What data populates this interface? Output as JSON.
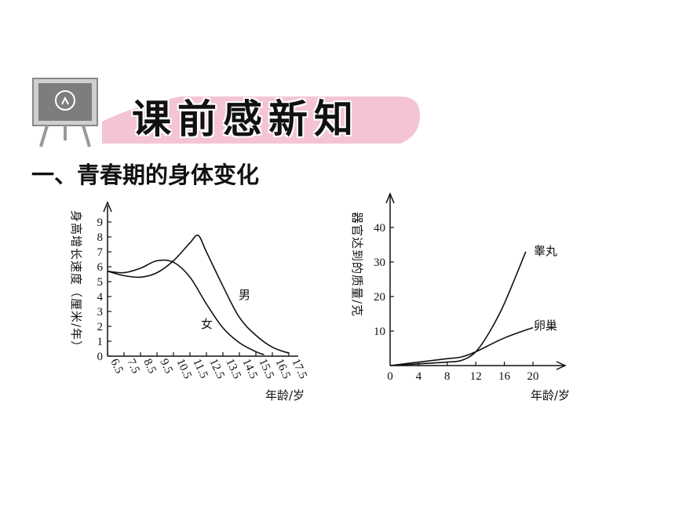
{
  "banner": {
    "title": "课前感新知"
  },
  "section": {
    "heading": "一、青春期的身体变化"
  },
  "chart_data": [
    {
      "type": "line",
      "ylabel": "身高增长速度（厘米/年）",
      "xlabel": "年龄/岁",
      "x_ticks": [
        "6.5",
        "7.5",
        "8.5",
        "9.5",
        "10.5",
        "11.5",
        "12.5",
        "13.5",
        "14.5",
        "15.5",
        "16.5",
        "17.5"
      ],
      "y_ticks": [
        "0",
        "1",
        "2",
        "3",
        "4",
        "5",
        "6",
        "7",
        "8",
        "9"
      ],
      "xlim": [
        6.5,
        17.5
      ],
      "ylim": [
        0,
        9
      ],
      "series": [
        {
          "name": "男",
          "points": [
            [
              6.5,
              5.7
            ],
            [
              7.5,
              5.4
            ],
            [
              8.5,
              5.3
            ],
            [
              9.5,
              5.6
            ],
            [
              10.5,
              6.4
            ],
            [
              11.5,
              7.6
            ],
            [
              12.0,
              8.1
            ],
            [
              12.5,
              7.0
            ],
            [
              13.5,
              4.7
            ],
            [
              14.5,
              2.6
            ],
            [
              15.5,
              1.4
            ],
            [
              16.5,
              0.6
            ],
            [
              17.5,
              0.2
            ]
          ]
        },
        {
          "name": "女",
          "points": [
            [
              6.5,
              5.7
            ],
            [
              7.5,
              5.6
            ],
            [
              8.5,
              5.9
            ],
            [
              9.5,
              6.4
            ],
            [
              10.5,
              6.3
            ],
            [
              11.5,
              5.3
            ],
            [
              12.5,
              3.5
            ],
            [
              13.5,
              1.9
            ],
            [
              14.5,
              0.9
            ],
            [
              15.5,
              0.3
            ],
            [
              16.0,
              0.1
            ]
          ]
        }
      ]
    },
    {
      "type": "line",
      "ylabel": "器官达到的质量/克",
      "xlabel": "年龄/岁",
      "x_ticks": [
        "0",
        "4",
        "8",
        "12",
        "16",
        "20"
      ],
      "y_ticks": [
        "10",
        "20",
        "30",
        "40"
      ],
      "xlim": [
        0,
        24
      ],
      "ylim": [
        0,
        48
      ],
      "series": [
        {
          "name": "睾丸",
          "points": [
            [
              0,
              0
            ],
            [
              4,
              0.5
            ],
            [
              8,
              1
            ],
            [
              10,
              1.5
            ],
            [
              12,
              4
            ],
            [
              14,
              10
            ],
            [
              16,
              18
            ],
            [
              19,
              33
            ]
          ]
        },
        {
          "name": "卵巢",
          "points": [
            [
              0,
              0
            ],
            [
              4,
              1
            ],
            [
              8,
              2
            ],
            [
              10,
              2.5
            ],
            [
              12,
              4
            ],
            [
              16,
              8
            ],
            [
              20,
              11
            ]
          ]
        }
      ]
    }
  ]
}
